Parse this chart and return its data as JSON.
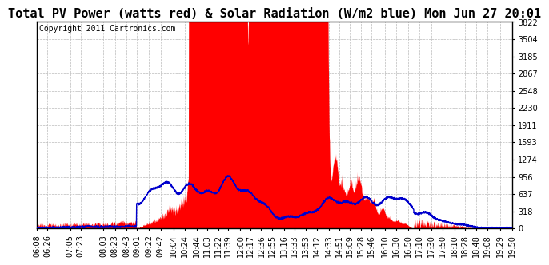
{
  "title": "Total PV Power (watts red) & Solar Radiation (W/m2 blue) Mon Jun 27 20:01",
  "copyright": "Copyright 2011 Cartronics.com",
  "ymax": 3822.2,
  "yticks": [
    0.0,
    318.5,
    637.0,
    955.6,
    1274.1,
    1592.6,
    1911.1,
    2229.6,
    2548.2,
    2866.7,
    3185.2,
    3503.7,
    3822.2
  ],
  "background_color": "#ffffff",
  "grid_color": "#bbbbbb",
  "red_color": "#ff0000",
  "blue_color": "#0000cc",
  "title_fontsize": 11,
  "copyright_fontsize": 7,
  "tick_fontsize": 7,
  "x_tick_labels": [
    "06:08",
    "06:26",
    "07:05",
    "07:23",
    "08:03",
    "08:23",
    "08:43",
    "09:01",
    "09:22",
    "09:42",
    "10:04",
    "10:24",
    "10:44",
    "11:03",
    "11:22",
    "11:39",
    "12:00",
    "12:17",
    "12:36",
    "12:55",
    "13:16",
    "13:33",
    "13:53",
    "14:12",
    "14:33",
    "14:51",
    "15:09",
    "15:28",
    "15:46",
    "16:10",
    "16:30",
    "16:50",
    "17:10",
    "17:30",
    "17:50",
    "18:10",
    "18:28",
    "18:48",
    "19:08",
    "19:29",
    "19:50"
  ]
}
